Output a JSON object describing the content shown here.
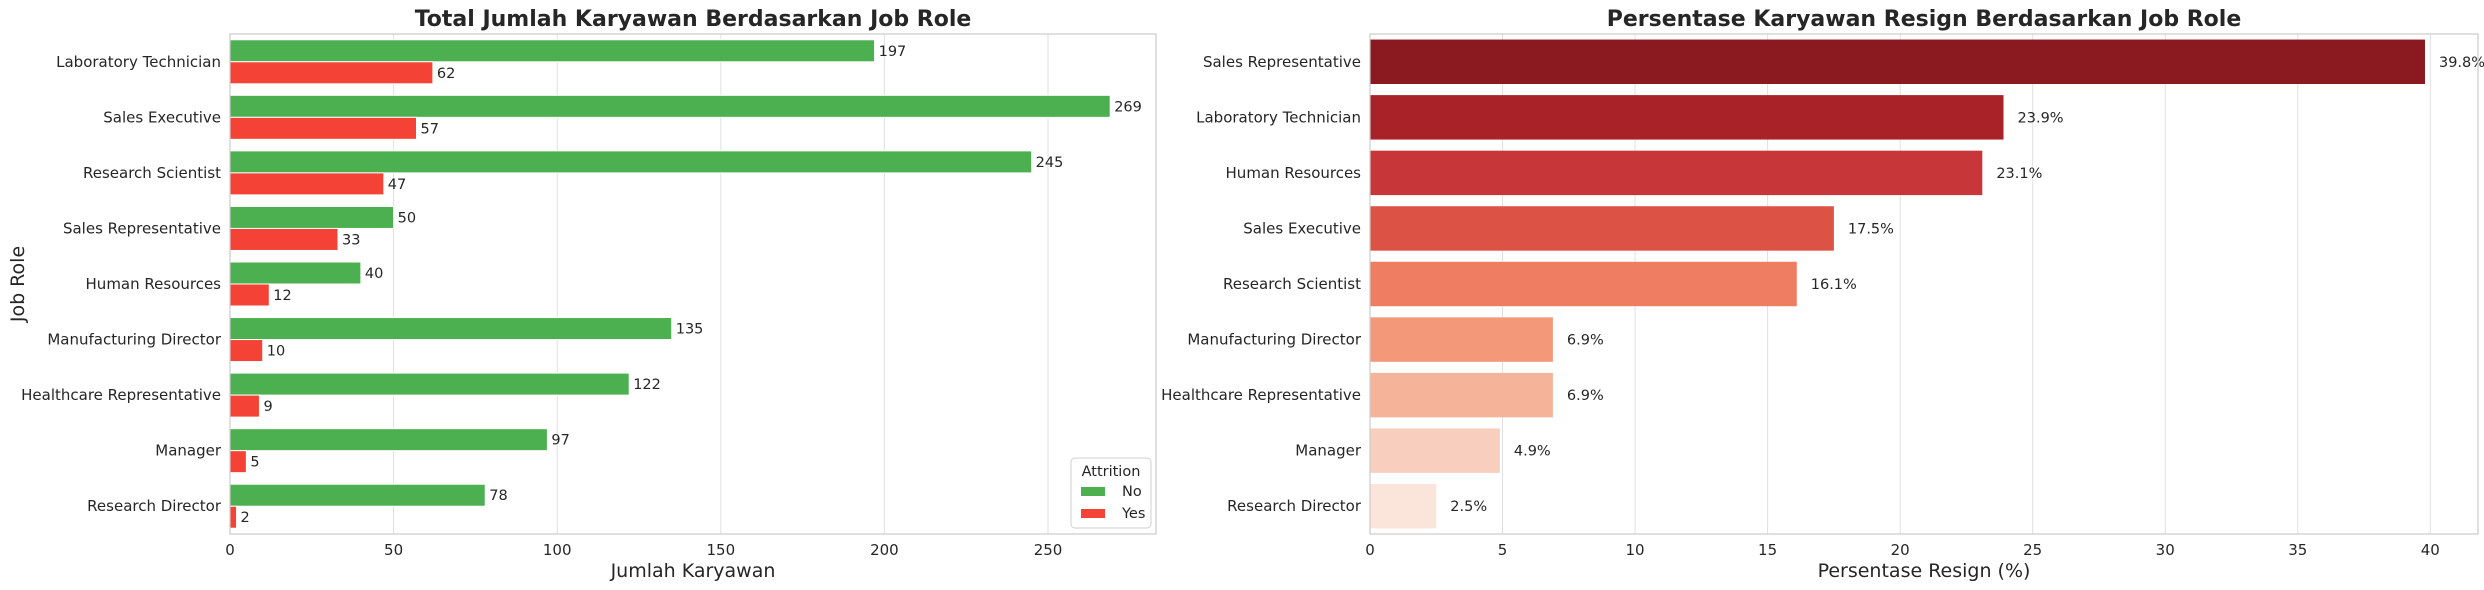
{
  "chart_data": [
    {
      "type": "bar",
      "orientation": "horizontal",
      "title": "Total Jumlah Karyawan Berdasarkan Job Role",
      "xlabel": "Jumlah Karyawan",
      "ylabel": "Job Role",
      "categories": [
        "Laboratory Technician",
        "Sales Executive",
        "Research Scientist",
        "Sales Representative",
        "Human Resources",
        "Manufacturing Director",
        "Healthcare Representative",
        "Manager",
        "Research Director"
      ],
      "series": [
        {
          "name": "No",
          "color": "#4caf50",
          "values": [
            197,
            269,
            245,
            50,
            40,
            135,
            122,
            97,
            78
          ]
        },
        {
          "name": "Yes",
          "color": "#f44336",
          "values": [
            62,
            57,
            47,
            33,
            12,
            10,
            9,
            5,
            2
          ]
        }
      ],
      "data_labels": [
        [
          "197",
          "269",
          "245",
          "50",
          "40",
          "135",
          "122",
          "97",
          "78"
        ],
        [
          "62",
          "57",
          "47",
          "33",
          "12",
          "10",
          "9",
          "5",
          "2"
        ]
      ],
      "xlim": [
        0,
        283
      ],
      "xticks": [
        0,
        50,
        100,
        150,
        200,
        250
      ],
      "xtick_labels": [
        "0",
        "50",
        "100",
        "150",
        "200",
        "250"
      ],
      "grid": "x",
      "legend": {
        "title": "Attrition",
        "position": "lower-right",
        "labels": [
          "No",
          "Yes"
        ]
      }
    },
    {
      "type": "bar",
      "orientation": "horizontal",
      "title": "Persentase Karyawan Resign Berdasarkan Job Role",
      "xlabel": "Persentase Resign (%)",
      "ylabel": "",
      "categories": [
        "Sales Representative",
        "Laboratory Technician",
        "Human Resources",
        "Sales Executive",
        "Research Scientist",
        "Manufacturing Director",
        "Healthcare Representative",
        "Manager",
        "Research Director"
      ],
      "values": [
        39.8,
        23.9,
        23.1,
        17.5,
        16.1,
        6.9,
        6.9,
        4.9,
        2.5
      ],
      "data_labels": [
        "39.8%",
        "23.9%",
        "23.1%",
        "17.5%",
        "16.1%",
        "6.9%",
        "6.9%",
        "4.9%",
        "2.5%"
      ],
      "colors": [
        "#8b1a20",
        "#a82228",
        "#c7373a",
        "#dc5345",
        "#ee7d62",
        "#f39878",
        "#f5b39a",
        "#f8cfbf",
        "#fbe4d9"
      ],
      "xlim": [
        0,
        41.8
      ],
      "xticks": [
        0,
        5,
        10,
        15,
        20,
        25,
        30,
        35,
        40
      ],
      "xtick_labels": [
        "0",
        "5",
        "10",
        "15",
        "20",
        "25",
        "30",
        "35",
        "40"
      ],
      "grid": "x"
    }
  ]
}
